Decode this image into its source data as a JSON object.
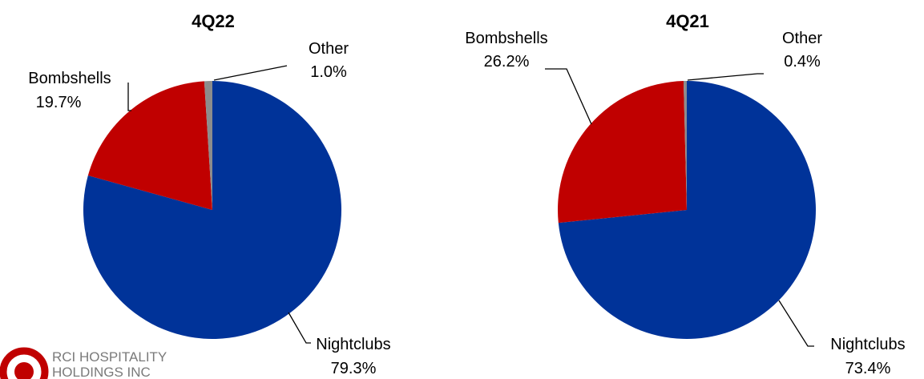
{
  "chart_data": [
    {
      "type": "pie",
      "title": "4Q22",
      "slices": [
        {
          "label": "Nightclubs",
          "value": 79.3,
          "display": "79.3%",
          "color": "#003399"
        },
        {
          "label": "Bombshells",
          "value": 19.7,
          "display": "19.7%",
          "color": "#c00000"
        },
        {
          "label": "Other",
          "value": 1.0,
          "display": "1.0%",
          "color": "#8c8c8c"
        }
      ]
    },
    {
      "type": "pie",
      "title": "4Q21",
      "slices": [
        {
          "label": "Nightclubs",
          "value": 73.4,
          "display": "73.4%",
          "color": "#003399"
        },
        {
          "label": "Bombshells",
          "value": 26.2,
          "display": "26.2%",
          "color": "#c00000"
        },
        {
          "label": "Other",
          "value": 0.4,
          "display": "0.4%",
          "color": "#8c8c8c"
        }
      ]
    }
  ],
  "logo": {
    "line1": "RCI HOSPITALITY",
    "line2": "HOLDINGS INC",
    "color": "#c00000"
  }
}
